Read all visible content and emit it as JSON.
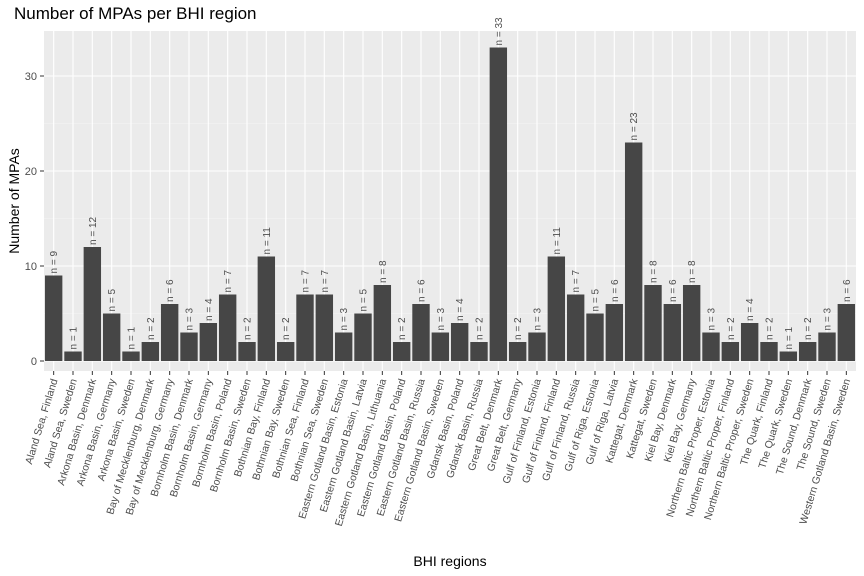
{
  "chart_data": {
    "type": "bar",
    "title": "Number of MPAs per BHI region",
    "xlabel": "BHI regions",
    "ylabel": "Number of MPAs",
    "ylim": [
      0,
      34
    ],
    "yticks": [
      0,
      10,
      20,
      30
    ],
    "grid": true,
    "bar_color": "#464646",
    "panel_color": "#ebebeb",
    "label_prefix": "n = ",
    "categories": [
      "Aland Sea, Finland",
      "Aland Sea, Sweden",
      "Arkona Basin, Denmark",
      "Arkona Basin, Germany",
      "Arkona Basin, Sweden",
      "Bay of Mecklenburg, Denmark",
      "Bay of Mecklenburg, Germany",
      "Bornholm Basin, Denmark",
      "Bornholm Basin, Germany",
      "Bornholm Basin, Poland",
      "Bornholm Basin, Sweden",
      "Bothnian Bay, Finland",
      "Bothnian Bay, Sweden",
      "Bothnian Sea, Finland",
      "Bothnian Sea, Sweden",
      "Eastern Gotland Basin, Estonia",
      "Eastern Gotland Basin, Latvia",
      "Eastern Gotland Basin, Lithuania",
      "Eastern Gotland Basin, Poland",
      "Eastern Gotland Basin, Russia",
      "Eastern Gotland Basin, Sweden",
      "Gdansk Basin, Poland",
      "Gdansk Basin, Russia",
      "Great Belt, Denmark",
      "Great Belt, Germany",
      "Gulf of Finland, Estonia",
      "Gulf of Finland, Finland",
      "Gulf of Finland, Russia",
      "Gulf of Riga, Estonia",
      "Gulf of Riga, Latvia",
      "Kattegat, Denmark",
      "Kattegat, Sweden",
      "Kiel Bay, Denmark",
      "Kiel Bay, Germany",
      "Northern Baltic Proper, Estonia",
      "Northern Baltic Proper, Finland",
      "Northern Baltic Proper, Sweden",
      "The Quark, Finland",
      "The Quark, Sweden",
      "The Sound, Denmark",
      "The Sound, Sweden",
      "Western Gotland Basin, Sweden"
    ],
    "values": [
      9,
      1,
      12,
      5,
      1,
      2,
      6,
      3,
      4,
      7,
      2,
      11,
      2,
      7,
      7,
      3,
      5,
      8,
      2,
      6,
      3,
      4,
      2,
      33,
      2,
      3,
      11,
      7,
      5,
      6,
      23,
      8,
      6,
      8,
      3,
      2,
      4,
      2,
      1,
      2,
      3,
      6
    ],
    "data_labels": [
      "n = 9",
      "n = 1",
      "n = 12",
      "n = 5",
      "n = 1",
      "n = 2",
      "n = 6",
      "n = 3",
      "n = 4",
      "n = 7",
      "n = 2",
      "n = 11",
      "n = 2",
      "n = 7",
      "n = 7",
      "n = 3",
      "n = 5",
      "n = 8",
      "n = 2",
      "n = 6",
      "n = 3",
      "n = 4",
      "n = 2",
      "n = 33",
      "n = 2",
      "n = 3",
      "n = 11",
      "n = 7",
      "n = 5",
      "n = 6",
      "n = 23",
      "n = 8",
      "n = 6",
      "n = 8",
      "n = 3",
      "n = 2",
      "n = 4",
      "n = 2",
      "n = 1",
      "n = 2",
      "n = 3",
      "n = 6"
    ]
  }
}
